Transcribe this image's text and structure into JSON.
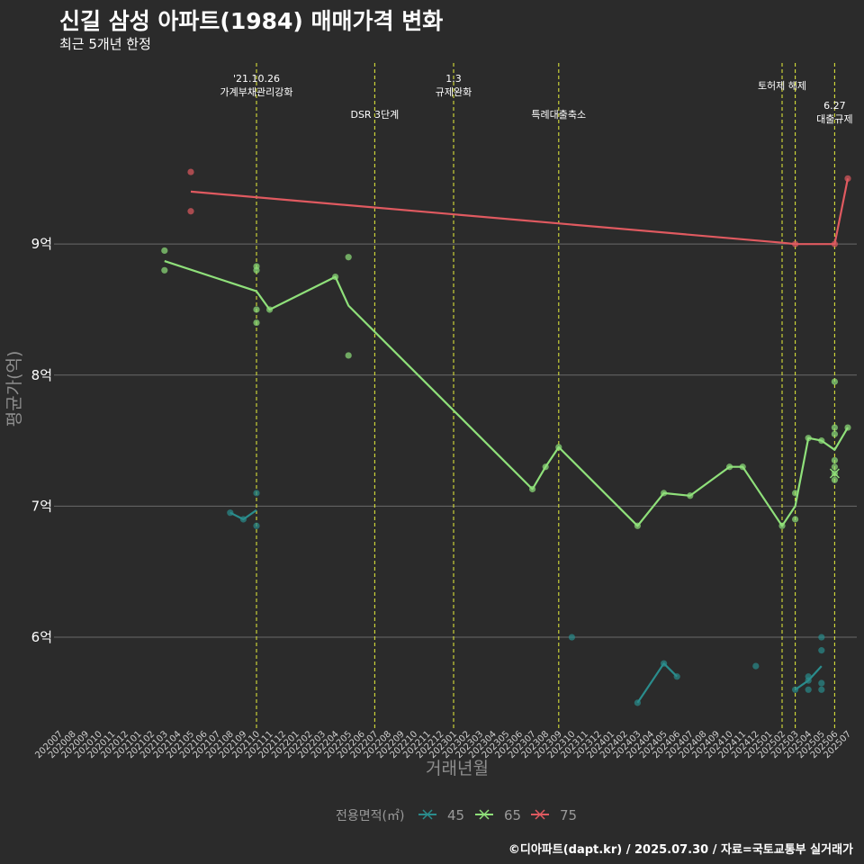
{
  "header": {
    "title": "신길 삼성 아파트(1984) 매매가격 변화",
    "subtitle": "최근 5개년 한정"
  },
  "footer": {
    "credit": "©디아파트(dapt.kr) / 2025.07.30 / 자료=국토교통부 실거래가"
  },
  "colors": {
    "background": "#2b2b2b",
    "grid": "#6a6a6a",
    "event_line": "#d8e03a",
    "s45": "#2a8c8c",
    "s65": "#8fe07a",
    "s75": "#e05a60"
  },
  "chart_data": {
    "type": "line",
    "title": "신길 삼성 아파트(1984) 매매가격 변화",
    "subtitle": "최근 5개년 한정",
    "xlabel": "거래년월",
    "ylabel": "평균가(억)",
    "ylim": [
      5.3,
      10.45
    ],
    "yticks": [
      6,
      7,
      8,
      9
    ],
    "ytick_labels": [
      "6억",
      "7억",
      "8억",
      "9억"
    ],
    "x_ticks": [
      "202007",
      "202008",
      "202009",
      "202010",
      "202011",
      "202012",
      "202101",
      "202102",
      "202103",
      "202104",
      "202105",
      "202106",
      "202107",
      "202108",
      "202109",
      "202110",
      "202111",
      "202112",
      "202201",
      "202202",
      "202203",
      "202204",
      "202205",
      "202206",
      "202207",
      "202208",
      "202209",
      "202210",
      "202211",
      "202212",
      "202301",
      "202302",
      "202303",
      "202304",
      "202305",
      "202306",
      "202307",
      "202308",
      "202309",
      "202310",
      "202311",
      "202312",
      "202401",
      "202402",
      "202403",
      "202404",
      "202405",
      "202406",
      "202407",
      "202408",
      "202409",
      "202410",
      "202411",
      "202412",
      "202501",
      "202502",
      "202503",
      "202504",
      "202505",
      "202506",
      "202507"
    ],
    "legend": {
      "title": "전용면적(㎡)",
      "position": "bottom",
      "entries": [
        "45",
        "65",
        "75"
      ]
    },
    "events": [
      {
        "label": "'21.10.26\n가계부채관리강화",
        "x": 15,
        "row": 0
      },
      {
        "label": "DSR 3단계",
        "x": 24,
        "row": 2
      },
      {
        "label": "1.3\n규제완화",
        "x": 30,
        "row": 0
      },
      {
        "label": "특례대출축소",
        "x": 38,
        "row": 2
      },
      {
        "label": "토허제 해제",
        "x": 55,
        "row": 1
      },
      {
        "label": "",
        "x": 56,
        "row": 1
      },
      {
        "label": "6.27\n대출규제",
        "x": 59,
        "row": 3
      }
    ],
    "series": [
      {
        "name": "45",
        "line": [
          [
            13,
            6.95
          ],
          [
            14,
            6.9
          ],
          [
            15,
            6.97
          ]
        ],
        "points": [
          [
            13,
            6.95
          ],
          [
            14,
            6.9
          ],
          [
            15,
            7.1
          ],
          [
            15,
            6.85
          ],
          [
            39,
            6.0
          ],
          [
            44,
            5.5
          ],
          [
            46,
            5.8
          ],
          [
            47,
            5.7
          ],
          [
            53,
            5.78
          ],
          [
            56,
            5.6
          ],
          [
            57,
            5.67
          ],
          [
            57,
            5.7
          ],
          [
            57,
            5.6
          ],
          [
            58,
            6.0
          ],
          [
            58,
            5.9
          ],
          [
            58,
            5.65
          ],
          [
            58,
            5.6
          ]
        ],
        "line2": [
          [
            44,
            5.5
          ],
          [
            46,
            5.8
          ],
          [
            47,
            5.7
          ]
        ],
        "line3": [
          [
            56,
            5.6
          ],
          [
            57,
            5.67
          ],
          [
            58,
            5.78
          ]
        ]
      },
      {
        "name": "65",
        "line": [
          [
            8,
            8.87
          ],
          [
            15,
            8.64
          ],
          [
            16,
            8.5
          ],
          [
            21,
            8.75
          ],
          [
            22,
            8.53
          ],
          [
            36,
            7.13
          ],
          [
            37,
            7.3
          ],
          [
            38,
            7.45
          ],
          [
            44,
            6.85
          ],
          [
            46,
            7.1
          ],
          [
            48,
            7.08
          ],
          [
            51,
            7.3
          ],
          [
            52,
            7.3
          ],
          [
            55,
            6.85
          ],
          [
            56,
            7.0
          ],
          [
            57,
            7.52
          ],
          [
            58,
            7.5
          ],
          [
            59,
            7.43
          ],
          [
            60,
            7.6
          ]
        ],
        "points": [
          [
            8,
            8.95
          ],
          [
            8,
            8.8
          ],
          [
            15,
            8.83
          ],
          [
            15,
            8.8
          ],
          [
            15,
            8.5
          ],
          [
            15,
            8.4
          ],
          [
            16,
            8.5
          ],
          [
            21,
            8.75
          ],
          [
            22,
            8.9
          ],
          [
            22,
            8.15
          ],
          [
            36,
            7.13
          ],
          [
            37,
            7.3
          ],
          [
            38,
            7.45
          ],
          [
            44,
            6.85
          ],
          [
            46,
            7.1
          ],
          [
            48,
            7.08
          ],
          [
            51,
            7.3
          ],
          [
            52,
            7.3
          ],
          [
            55,
            6.85
          ],
          [
            56,
            7.1
          ],
          [
            56,
            6.9
          ],
          [
            57,
            7.52
          ],
          [
            58,
            7.5
          ],
          [
            59,
            7.95
          ],
          [
            59,
            7.6
          ],
          [
            59,
            7.55
          ],
          [
            59,
            7.35
          ],
          [
            59,
            7.3
          ],
          [
            59,
            7.25
          ],
          [
            59,
            7.2
          ],
          [
            60,
            7.6
          ]
        ]
      },
      {
        "name": "75",
        "line": [
          [
            10,
            9.4
          ],
          [
            55,
            9.01
          ],
          [
            56,
            9.0
          ],
          [
            59,
            9.0
          ],
          [
            60,
            9.5
          ]
        ],
        "points": [
          [
            10,
            9.55
          ],
          [
            10,
            9.25
          ],
          [
            56,
            9.0
          ],
          [
            59,
            9.0
          ],
          [
            60,
            9.5
          ]
        ]
      }
    ]
  }
}
